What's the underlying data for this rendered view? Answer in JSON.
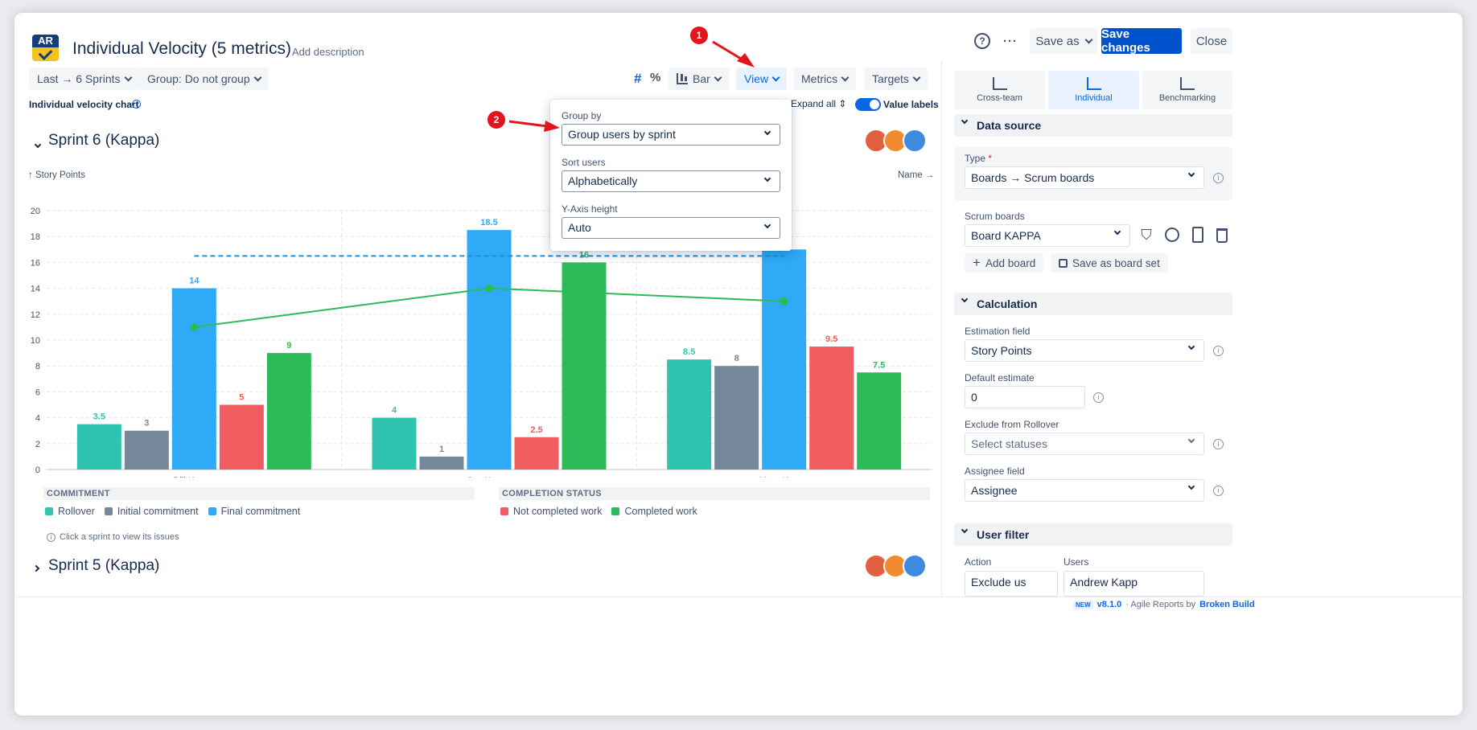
{
  "app": {
    "logo_text": "AR",
    "title": "Individual Velocity (5 metrics)",
    "add_description": "Add description",
    "help_icon": "question-icon",
    "more_icon": "ellipsis-icon",
    "save_as": "Save as",
    "save_changes": "Save changes",
    "close": "Close"
  },
  "toolbar": {
    "sprints": "Last → 6 Sprints",
    "group": "Group: Do not group",
    "hash": "#",
    "percent": "%",
    "chart_type": "Bar",
    "view": "View",
    "metrics": "Metrics",
    "targets": "Targets",
    "chart_label": "Individual velocity chart",
    "expand_all": "Expand all",
    "value_labels": "Value labels"
  },
  "sprint6": {
    "title": "Sprint 6 (Kappa)",
    "y_axis": "↑ Story Points",
    "sort_label": "Name →"
  },
  "sprint5": {
    "title": "Sprint 5 (Kappa)"
  },
  "chart_data": {
    "type": "bar",
    "categories": [
      "Bill Kappa",
      "Joe Kappa",
      "Mary Kappa"
    ],
    "series": [
      {
        "name": "Rollover",
        "color": "#2ec4b0",
        "values": [
          3.5,
          4,
          8.5
        ]
      },
      {
        "name": "Initial commitment",
        "color": "#74889a",
        "values": [
          3,
          1,
          8
        ]
      },
      {
        "name": "Final commitment",
        "color": "#2eaaf6",
        "values": [
          14,
          18.5,
          17
        ]
      },
      {
        "name": "Not completed work",
        "color": "#f05d60",
        "values": [
          5,
          2.5,
          9.5
        ]
      },
      {
        "name": "Completed work",
        "color": "#2dbb5a",
        "values": [
          9,
          16,
          7.5
        ]
      }
    ],
    "line": {
      "color": "#2dbb5a",
      "values": [
        11,
        14,
        13
      ]
    },
    "target_line": {
      "color": "#1f8fd6",
      "value": 16.5
    },
    "ylim": [
      0,
      20
    ],
    "yticks": [
      0,
      2,
      4,
      6,
      8,
      10,
      12,
      14,
      16,
      18,
      20
    ],
    "legend_groups": [
      {
        "title": "COMMITMENT",
        "items": [
          "Rollover",
          "Initial commitment",
          "Final commitment"
        ]
      },
      {
        "title": "COMPLETION STATUS",
        "items": [
          "Not completed work",
          "Completed work"
        ]
      }
    ],
    "hint": "Click a sprint to view its issues"
  },
  "view_dropdown": {
    "group_by_label": "Group by",
    "group_by_value": "Group users by sprint",
    "sort_label": "Sort users",
    "sort_value": "Alphabetically",
    "yaxis_label": "Y-Axis height",
    "yaxis_value": "Auto"
  },
  "annotations": {
    "badge1": "1",
    "badge2": "2",
    "arrow_color": "#e3141b"
  },
  "sidebar": {
    "tabs": [
      {
        "label": "Cross-team",
        "icon": "bar-chart-icon"
      },
      {
        "label": "Individual",
        "icon": "individual-chart-icon"
      },
      {
        "label": "Benchmarking",
        "icon": "benchmark-icon"
      }
    ],
    "data_source": {
      "title": "Data source",
      "type_label": "Type",
      "required": "*",
      "type_value": "Boards → Scrum boards",
      "boards_label": "Scrum boards",
      "board_value": "Board KAPPA",
      "add_board": "Add board",
      "save_board_set": "Save as board set"
    },
    "calculation": {
      "title": "Calculation",
      "estimation_label": "Estimation field",
      "estimation_value": "Story Points",
      "default_label": "Default estimate",
      "default_value": "0",
      "exclude_label": "Exclude from Rollover",
      "exclude_placeholder": "Select statuses",
      "assignee_label": "Assignee field",
      "assignee_value": "Assignee"
    },
    "user_filter": {
      "title": "User filter",
      "action_label": "Action",
      "users_label": "Users",
      "action_value": "Exclude us",
      "users_value": "Andrew Kapp"
    }
  },
  "footer": {
    "new_badge": "NEW",
    "version": "v8.1.0",
    "by": "· Agile Reports by",
    "vendor": "Broken Build"
  }
}
